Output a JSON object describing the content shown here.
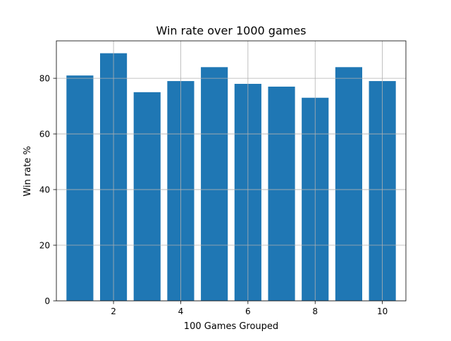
{
  "chart_data": {
    "type": "bar",
    "title": "Win rate over 1000 games",
    "xlabel": "100 Games Grouped",
    "ylabel": "Win rate %",
    "categories": [
      1,
      2,
      3,
      4,
      5,
      6,
      7,
      8,
      9,
      10
    ],
    "values": [
      81,
      89,
      75,
      79,
      84,
      78,
      77,
      73,
      84,
      79
    ],
    "xlim": [
      0.3,
      10.7
    ],
    "ylim": [
      0,
      93.45
    ],
    "xticks": [
      2,
      4,
      6,
      8,
      10
    ],
    "yticks": [
      0,
      20,
      40,
      60,
      80
    ],
    "grid": true,
    "bar_color": "#1f77b4",
    "grid_color": "#b0b0b0"
  }
}
